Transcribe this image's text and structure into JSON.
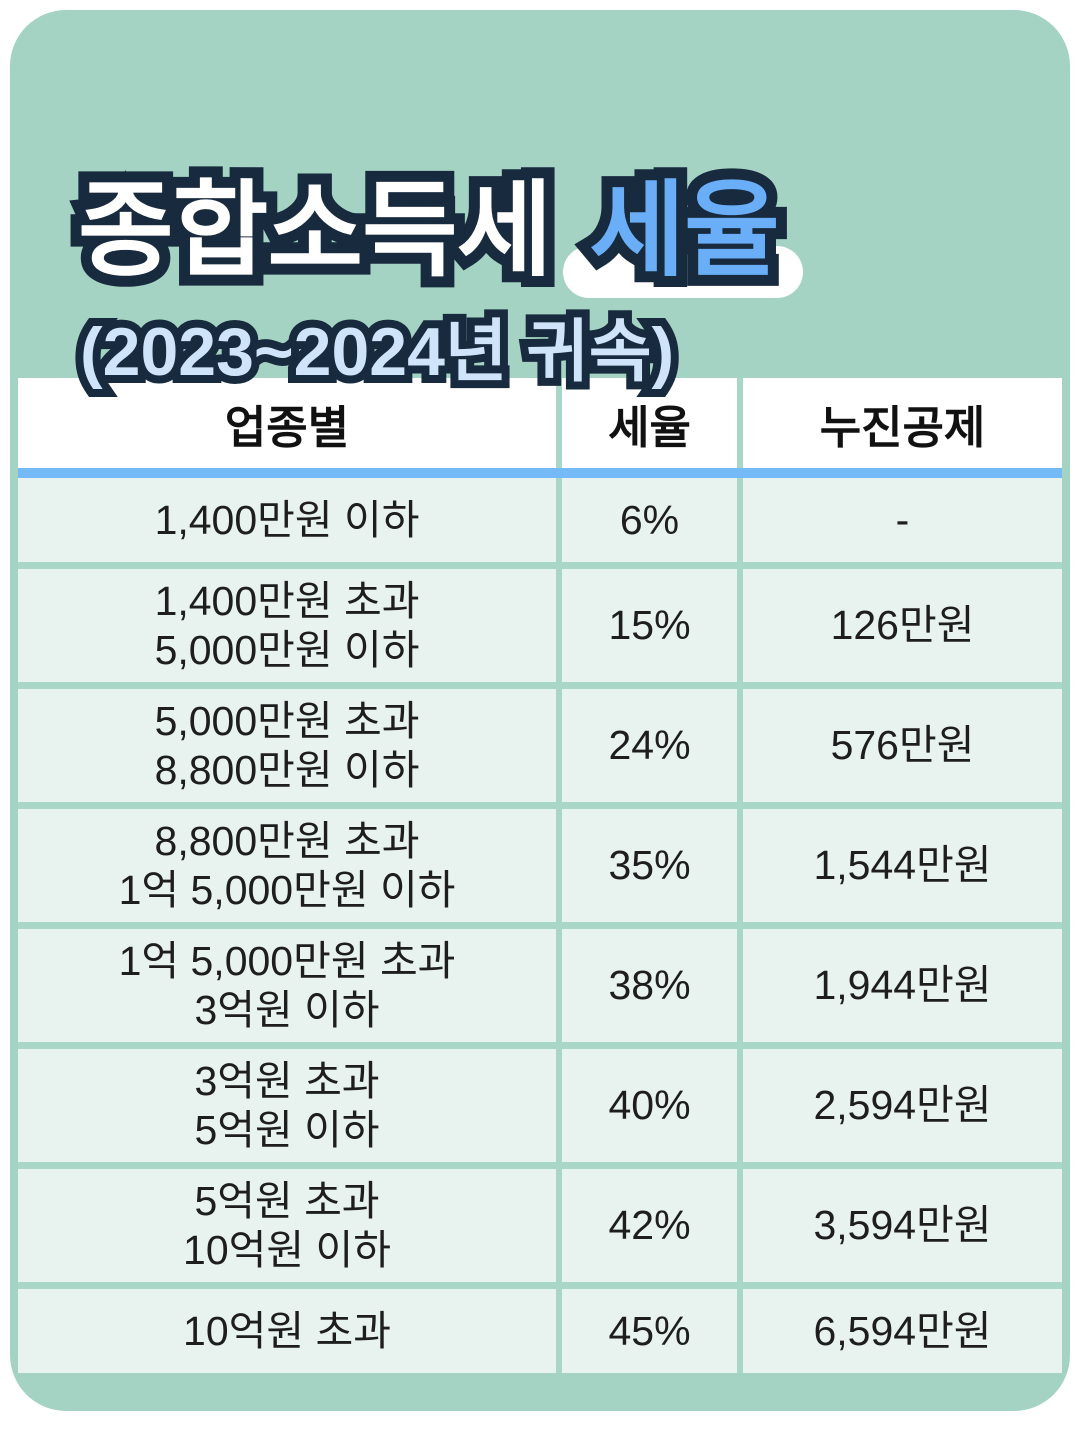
{
  "colors": {
    "page_bg": "#ffffff",
    "card_bg": "#a4d3c3",
    "gap_line": "#a9d7c7",
    "cell_bg": "#e8f3ef",
    "header_bg": "#ffffff",
    "divider_blue": "#74baf6",
    "outline_navy": "#182a3d",
    "title_fill": "#ffffff",
    "title_accent_fill": "#6aaef7",
    "subtitle_fill": "#cfe4f8",
    "text_dark": "#1e1e1e"
  },
  "title": {
    "part1": "종합소득세",
    "part2": "세율",
    "subtitle": "(2023~2024년 귀속)"
  },
  "table": {
    "headers": {
      "bracket": "업종별",
      "rate": "세율",
      "deduction": "누진공제"
    },
    "rows": [
      {
        "bracket": "1,400만원 이하",
        "rate": "6%",
        "deduction": "-"
      },
      {
        "bracket": "1,400만원 초과\n5,000만원 이하",
        "rate": "15%",
        "deduction": "126만원"
      },
      {
        "bracket": "5,000만원 초과\n8,800만원 이하",
        "rate": "24%",
        "deduction": "576만원"
      },
      {
        "bracket": "8,800만원 초과\n1억 5,000만원 이하",
        "rate": "35%",
        "deduction": "1,544만원"
      },
      {
        "bracket": "1억 5,000만원 초과\n3억원 이하",
        "rate": "38%",
        "deduction": "1,944만원"
      },
      {
        "bracket": "3억원 초과\n5억원 이하",
        "rate": "40%",
        "deduction": "2,594만원"
      },
      {
        "bracket": "5억원 초과\n10억원 이하",
        "rate": "42%",
        "deduction": "3,594만원"
      },
      {
        "bracket": "10억원 초과",
        "rate": "45%",
        "deduction": "6,594만원"
      }
    ]
  }
}
